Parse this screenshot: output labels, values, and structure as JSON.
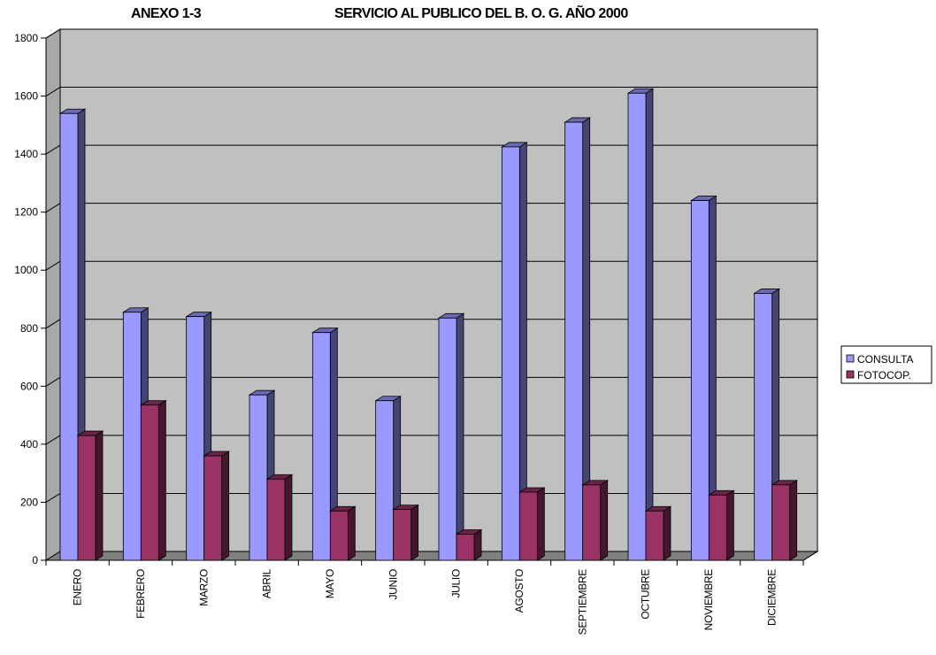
{
  "chart_data": {
    "type": "bar",
    "title_left": "ANEXO 1-3",
    "title": "SERVICIO AL PUBLICO DEL B. O. G.  AÑO 2000",
    "xlabel": "",
    "ylabel": "",
    "ylim": [
      0,
      1800
    ],
    "yticks": [
      "0",
      "200",
      "400",
      "600",
      "800",
      "1000",
      "1200",
      "1400",
      "1600",
      "1800"
    ],
    "grid": true,
    "legend_position": "right",
    "categories": [
      "ENERO",
      "FEBRERO",
      "MARZO",
      "ABRIL",
      "MAYO",
      "JUNIO",
      "JULIO",
      "AGOSTO",
      "SEPTIEMBRE",
      "OCTUBRE",
      "NOVIEMBRE",
      "DICIEMBRE"
    ],
    "series": [
      {
        "name": "CONSULTA",
        "color": "#9999FF",
        "values": [
          1540,
          855,
          840,
          570,
          785,
          550,
          835,
          1425,
          1510,
          1610,
          1240,
          920
        ]
      },
      {
        "name": "FOTOCOP.",
        "color": "#993366",
        "values": [
          430,
          535,
          360,
          280,
          170,
          175,
          90,
          235,
          260,
          170,
          225,
          260
        ]
      }
    ]
  }
}
